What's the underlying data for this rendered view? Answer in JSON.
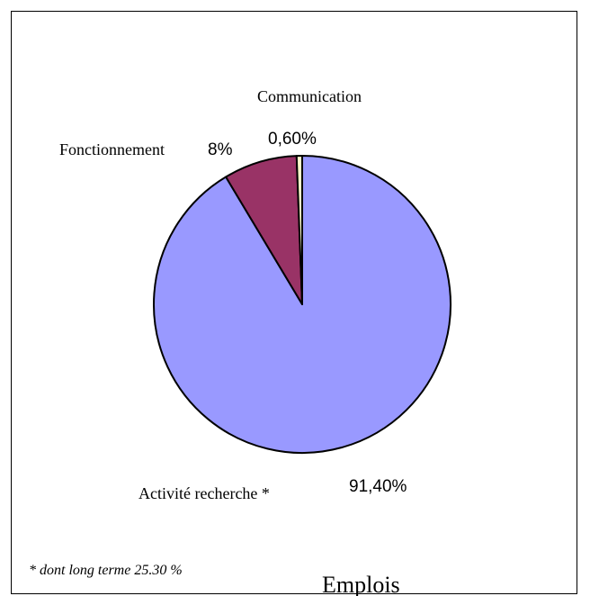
{
  "chart_data": {
    "type": "pie",
    "title": "Emplois",
    "slices": [
      {
        "label": "Activité recherche *",
        "value": 91.4,
        "value_label": "91,40%",
        "color": "#9999ff"
      },
      {
        "label": "Fonctionnement",
        "value": 8,
        "value_label": "8%",
        "color": "#993366"
      },
      {
        "label": "Communication",
        "value": 0.6,
        "value_label": "0,60%",
        "color": "#ffffcc"
      }
    ],
    "footnote": "* dont long terme 25.30 %"
  }
}
